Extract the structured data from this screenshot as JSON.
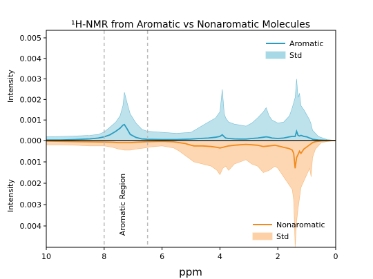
{
  "chart_data": {
    "type": "area",
    "title": "¹H-NMR from Aromatic vs Nonaromatic Molecules",
    "xlabel": "ppm",
    "x_reversed": true,
    "xlim": [
      10,
      0
    ],
    "x_ticks": [
      "10",
      "8",
      "6",
      "4",
      "2",
      "0"
    ],
    "top_panel": {
      "ylabel": "Intensity",
      "ylim": [
        0,
        0.0052
      ],
      "y_ticks": [
        "0.000",
        "0.001",
        "0.002",
        "0.003",
        "0.004",
        "0.005"
      ],
      "legend_position": "top-right",
      "legend": [
        {
          "label": "Aromatic",
          "kind": "line",
          "color": "#2b9cbf"
        },
        {
          "label": "Std",
          "kind": "fill",
          "color": "#a7d8e5"
        }
      ],
      "x": [
        10,
        9.5,
        9.0,
        8.5,
        8.2,
        8.0,
        7.8,
        7.6,
        7.45,
        7.35,
        7.3,
        7.2,
        7.1,
        6.9,
        6.7,
        6.5,
        6.0,
        5.5,
        5.0,
        4.7,
        4.4,
        4.15,
        4.0,
        3.92,
        3.85,
        3.8,
        3.7,
        3.5,
        3.3,
        3.1,
        2.9,
        2.7,
        2.5,
        2.4,
        2.3,
        2.2,
        2.0,
        1.8,
        1.6,
        1.5,
        1.4,
        1.35,
        1.3,
        1.25,
        1.2,
        1.1,
        1.0,
        0.9,
        0.85,
        0.8,
        0.6,
        0.3,
        0
      ],
      "mean": [
        3e-05,
        3e-05,
        5e-05,
        8e-05,
        0.00012,
        0.00018,
        0.00028,
        0.00045,
        0.0006,
        0.00075,
        0.00078,
        0.00055,
        0.0003,
        0.00015,
        8e-05,
        6e-05,
        5e-05,
        5e-05,
        7e-05,
        0.0001,
        0.00012,
        0.00016,
        0.0002,
        0.00028,
        0.00018,
        0.00012,
        0.0001,
        8e-05,
        7e-05,
        7e-05,
        0.0001,
        0.00012,
        0.00016,
        0.00018,
        0.00016,
        0.00012,
        0.0001,
        0.00012,
        0.00018,
        0.0002,
        0.0002,
        0.00045,
        0.00025,
        0.00022,
        0.00025,
        0.0002,
        0.00018,
        0.00012,
        0.0001,
        6e-05,
        3e-05,
        1e-05,
        0.0
      ],
      "std_upper": [
        0.00018,
        0.0002,
        0.00022,
        0.00025,
        0.0003,
        0.00042,
        0.00065,
        0.0009,
        0.0012,
        0.0017,
        0.00235,
        0.0018,
        0.0013,
        0.00085,
        0.00055,
        0.00045,
        0.0004,
        0.00035,
        0.0004,
        0.00065,
        0.0009,
        0.0011,
        0.0014,
        0.0025,
        0.0013,
        0.0011,
        0.0009,
        0.0008,
        0.00075,
        0.0007,
        0.00085,
        0.0011,
        0.0014,
        0.0016,
        0.0012,
        0.001,
        0.00085,
        0.0009,
        0.0012,
        0.0016,
        0.0021,
        0.003,
        0.0021,
        0.0023,
        0.0017,
        0.0015,
        0.00125,
        0.001,
        0.0008,
        0.0005,
        0.0002,
        5e-05,
        0.0
      ]
    },
    "bottom_panel": {
      "ylabel": "Intensity",
      "ylim": [
        0,
        0.005
      ],
      "y_ticks": [
        "0.001",
        "0.002",
        "0.003",
        "0.004"
      ],
      "legend_position": "bottom-right",
      "legend": [
        {
          "label": "Nonaromatic",
          "kind": "line",
          "color": "#f28a1c"
        },
        {
          "label": "Std",
          "kind": "fill",
          "color": "#fdd0a6"
        }
      ],
      "x": [
        10,
        9.5,
        9.0,
        8.5,
        8.0,
        7.7,
        7.5,
        7.3,
        7.1,
        6.9,
        6.6,
        6.4,
        6.0,
        5.6,
        5.4,
        5.2,
        5.1,
        5.0,
        4.9,
        4.6,
        4.3,
        4.1,
        4.0,
        3.9,
        3.8,
        3.7,
        3.5,
        3.3,
        3.1,
        2.9,
        2.7,
        2.5,
        2.3,
        2.1,
        2.0,
        1.9,
        1.8,
        1.7,
        1.6,
        1.5,
        1.45,
        1.4,
        1.35,
        1.3,
        1.25,
        1.2,
        1.1,
        1.0,
        0.9,
        0.85,
        0.8,
        0.7,
        0.5,
        0.3,
        0
      ],
      "mean": [
        3e-05,
        4e-05,
        5e-05,
        6e-05,
        7e-05,
        8e-05,
        0.0001,
        0.0001,
        0.0001,
        8e-05,
        6e-05,
        5e-05,
        4e-05,
        6e-05,
        0.0001,
        0.00014,
        0.00018,
        0.00022,
        0.00025,
        0.00025,
        0.00028,
        0.00032,
        0.00035,
        0.00032,
        0.00028,
        0.00025,
        0.00022,
        0.0002,
        0.00018,
        0.0002,
        0.00022,
        0.00028,
        0.00025,
        0.00022,
        0.00025,
        0.00028,
        0.00032,
        0.00035,
        0.00038,
        0.00045,
        0.0006,
        0.0013,
        0.0008,
        0.00065,
        0.0005,
        0.0006,
        0.0004,
        0.0003,
        0.0002,
        0.00015,
        0.0001,
        5e-05,
        2e-05,
        1e-05,
        0.0
      ],
      "std_lower": [
        0.0002,
        0.0002,
        0.00022,
        0.00025,
        0.00025,
        0.00032,
        0.0004,
        0.00045,
        0.00045,
        0.0004,
        0.00035,
        0.0003,
        0.00025,
        0.00035,
        0.0005,
        0.0007,
        0.0008,
        0.0009,
        0.001,
        0.0011,
        0.0012,
        0.0014,
        0.0016,
        0.0013,
        0.0012,
        0.0014,
        0.0011,
        0.001,
        0.0009,
        0.0011,
        0.0012,
        0.0015,
        0.0014,
        0.0012,
        0.0013,
        0.0015,
        0.0017,
        0.0019,
        0.0021,
        0.0023,
        0.0028,
        0.005,
        0.0038,
        0.0032,
        0.0027,
        0.0022,
        0.0019,
        0.0016,
        0.0013,
        0.0017,
        0.0008,
        0.0004,
        0.0001,
        5e-05,
        0.0
      ]
    },
    "annotations": [
      {
        "text": "Aromatic Region",
        "x_range": [
          8.0,
          6.5
        ],
        "style": "dashed vertical lines",
        "color": "#bbbbbb"
      }
    ],
    "grid": false
  }
}
